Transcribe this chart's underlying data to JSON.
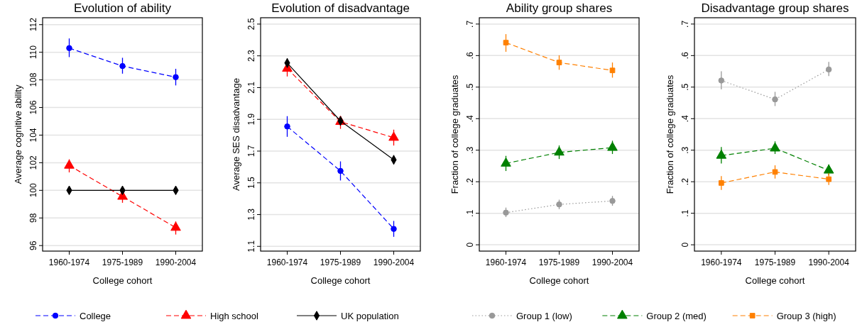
{
  "chart_data": [
    {
      "type": "line",
      "title": "Evolution of ability",
      "xlabel": "College cohort",
      "ylabel": "Average cognitive ability",
      "categories": [
        "1960-1974",
        "1975-1989",
        "1990-2004"
      ],
      "ylim": [
        95.6,
        112.5
      ],
      "yticks": [
        96,
        98,
        100,
        102,
        104,
        106,
        108,
        110,
        112
      ],
      "grid": "y",
      "legend": "bottom",
      "series": [
        {
          "name": "College",
          "color": "#0000ff",
          "marker": "circle",
          "line_style": "dashed",
          "values": [
            110.3,
            109.0,
            108.2
          ],
          "errors": [
            [
              109.65,
              111.0
            ],
            [
              108.45,
              109.6
            ],
            [
              107.6,
              108.8
            ]
          ]
        },
        {
          "name": "High school",
          "color": "#ff0000",
          "marker": "triangle",
          "line_style": "dashed",
          "values": [
            101.8,
            99.55,
            97.3
          ],
          "errors": [
            [
              101.3,
              102.25
            ],
            [
              99.1,
              100.0
            ],
            [
              96.8,
              97.75
            ]
          ]
        },
        {
          "name": "UK population",
          "color": "#000000",
          "marker": "diamond",
          "line_style": "solid",
          "values": [
            100,
            100,
            100
          ]
        }
      ]
    },
    {
      "type": "line",
      "title": "Evolution of disadvantage",
      "xlabel": "College cohort",
      "ylabel": "Average SES disadvantage",
      "categories": [
        "1960-1974",
        "1975-1989",
        "1990-2004"
      ],
      "ylim": [
        1.07,
        2.54
      ],
      "yticks": [
        1.1,
        1.3,
        1.5,
        1.7,
        1.9,
        2.1,
        2.3,
        2.5
      ],
      "grid": "y",
      "series": [
        {
          "name": "College",
          "color": "#0000ff",
          "marker": "circle",
          "line_style": "dashed",
          "values": [
            1.855,
            1.575,
            1.21
          ],
          "errors": [
            [
              1.79,
              1.92
            ],
            [
              1.515,
              1.635
            ],
            [
              1.16,
              1.26
            ]
          ]
        },
        {
          "name": "High school",
          "color": "#ff0000",
          "marker": "triangle",
          "line_style": "dashed",
          "values": [
            2.22,
            1.885,
            1.785
          ],
          "errors": [
            [
              2.17,
              2.26
            ],
            [
              1.84,
              1.92
            ],
            [
              1.735,
              1.835
            ]
          ]
        },
        {
          "name": "UK population",
          "color": "#000000",
          "marker": "diamond",
          "line_style": "solid",
          "values": [
            2.255,
            1.89,
            1.645
          ],
          "errors": [
            [
              2.225,
              2.285
            ],
            [
              1.86,
              1.92
            ],
            [
              1.615,
              1.675
            ]
          ]
        }
      ]
    },
    {
      "type": "line",
      "title": "Ability group shares",
      "xlabel": "College cohort",
      "ylabel": "Fraction of college graduates",
      "categories": [
        "1960-1974",
        "1975-1989",
        "1990-2004"
      ],
      "ylim": [
        -0.02,
        0.72
      ],
      "yticks": [
        0,
        {
          "value": 0.1,
          "label": ".1"
        },
        {
          "value": 0.2,
          "label": ".2"
        },
        {
          "value": 0.3,
          "label": ".3"
        },
        {
          "value": 0.4,
          "label": ".4"
        },
        {
          "value": 0.5,
          "label": ".5"
        },
        {
          "value": 0.6,
          "label": ".6"
        },
        {
          "value": 0.7,
          "label": ".7"
        }
      ],
      "grid": "y",
      "legend": "bottom",
      "series": [
        {
          "name": "Group 1 (low)",
          "color": "#999999",
          "marker": "circle",
          "line_style": "dotted",
          "values": [
            0.102,
            0.128,
            0.139
          ],
          "errors": [
            [
              0.088,
              0.118
            ],
            [
              0.113,
              0.143
            ],
            [
              0.124,
              0.155
            ]
          ]
        },
        {
          "name": "Group 2 (med)",
          "color": "#008000",
          "marker": "triangle",
          "line_style": "dashed",
          "values": [
            0.258,
            0.293,
            0.308
          ],
          "errors": [
            [
              0.234,
              0.282
            ],
            [
              0.272,
              0.315
            ],
            [
              0.288,
              0.33
            ]
          ]
        },
        {
          "name": "Group 3 (high)",
          "color": "#ff8000",
          "marker": "square",
          "line_style": "dashed",
          "values": [
            0.641,
            0.578,
            0.553
          ],
          "errors": [
            [
              0.612,
              0.668
            ],
            [
              0.555,
              0.601
            ],
            [
              0.53,
              0.578
            ]
          ]
        }
      ]
    },
    {
      "type": "line",
      "title": "Disadvantage group shares",
      "xlabel": "College cohort",
      "ylabel": "Fraction of college graduates",
      "categories": [
        "1960-1974",
        "1975-1989",
        "1990-2004"
      ],
      "ylim": [
        -0.02,
        0.72
      ],
      "yticks": [
        0,
        {
          "value": 0.1,
          "label": ".1"
        },
        {
          "value": 0.2,
          "label": ".2"
        },
        {
          "value": 0.3,
          "label": ".3"
        },
        {
          "value": 0.4,
          "label": ".4"
        },
        {
          "value": 0.5,
          "label": ".5"
        },
        {
          "value": 0.6,
          "label": ".6"
        },
        {
          "value": 0.7,
          "label": ".7"
        }
      ],
      "grid": "y",
      "series": [
        {
          "name": "Group 1 (low)",
          "color": "#999999",
          "marker": "circle",
          "line_style": "dotted",
          "values": [
            0.521,
            0.461,
            0.556
          ],
          "errors": [
            [
              0.493,
              0.55
            ],
            [
              0.44,
              0.485
            ],
            [
              0.535,
              0.58
            ]
          ]
        },
        {
          "name": "Group 2 (med)",
          "color": "#008000",
          "marker": "triangle",
          "line_style": "dashed",
          "values": [
            0.283,
            0.306,
            0.236
          ],
          "errors": [
            [
              0.258,
              0.31
            ],
            [
              0.288,
              0.328
            ],
            [
              0.22,
              0.255
            ]
          ]
        },
        {
          "name": "Group 3 (high)",
          "color": "#ff8000",
          "marker": "square",
          "line_style": "dashed",
          "values": [
            0.196,
            0.231,
            0.208
          ],
          "errors": [
            [
              0.174,
              0.218
            ],
            [
              0.21,
              0.252
            ],
            [
              0.19,
              0.227
            ]
          ]
        }
      ]
    }
  ]
}
